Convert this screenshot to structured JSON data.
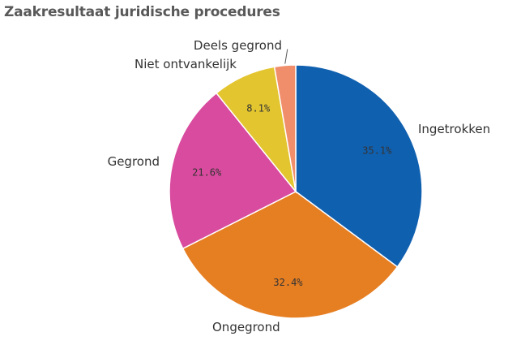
{
  "chart_data": {
    "type": "pie",
    "title": "Zaakresultaat juridische procedures",
    "categories": [
      "Ingetrokken",
      "Ongegrond",
      "Gegrond",
      "Niet ontvankelijk",
      "Deels gegrond"
    ],
    "values": [
      35.1,
      32.4,
      21.6,
      8.1,
      2.7
    ],
    "data_labels": [
      "35.1%",
      "32.4%",
      "21.6%",
      "8.1%",
      ""
    ],
    "colors": [
      "#1060b0",
      "#e67e22",
      "#d84b9e",
      "#e3c52f",
      "#f08e6b"
    ],
    "start_angle": "top (12 o'clock), clockwise",
    "legend": "none (labels on slices)"
  }
}
